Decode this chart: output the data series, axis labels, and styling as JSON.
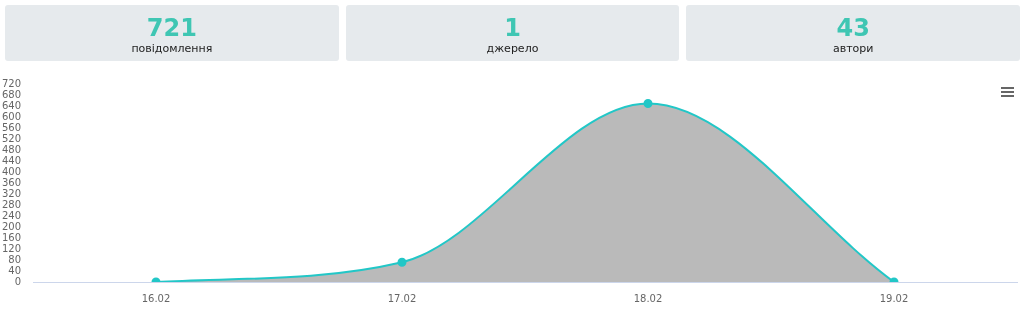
{
  "chart_data": [
    {
      "type": "other",
      "categories": [
        "повідомлення",
        "джерело",
        "автори"
      ],
      "values": [
        721,
        1,
        43
      ],
      "data_labels": true
    },
    {
      "type": "area",
      "categories": [
        "16.02",
        "17.02",
        "18.02",
        "19.02"
      ],
      "values": [
        0,
        72,
        649,
        0
      ],
      "color": "#22c7c7",
      "ylim": [
        0,
        720
      ],
      "yticks": [
        0,
        40,
        80,
        120,
        160,
        200,
        240,
        280,
        320,
        360,
        400,
        440,
        480,
        520,
        560,
        600,
        640,
        680,
        720
      ],
      "marker": "circle"
    }
  ]
}
